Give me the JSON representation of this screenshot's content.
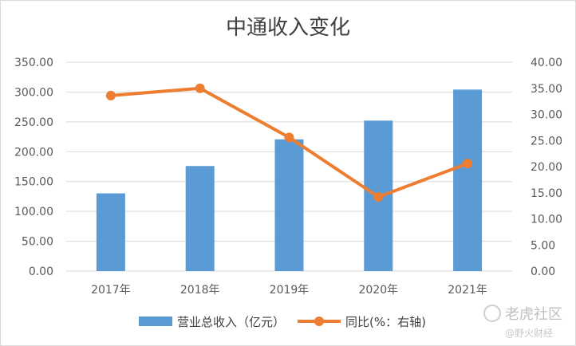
{
  "chart_data": {
    "type": "bar",
    "title": "中通收入变化",
    "categories": [
      "2017年",
      "2018年",
      "2019年",
      "2020年",
      "2021年"
    ],
    "series": [
      {
        "name": "营业总收入（亿元）",
        "type": "bar",
        "axis": "left",
        "color": "#5b9bd5",
        "values": [
          130.2,
          176.0,
          220.7,
          252.1,
          304.1
        ]
      },
      {
        "name": "同比(%：右轴)",
        "type": "line",
        "axis": "right",
        "color": "#ed7d31",
        "values": [
          33.6,
          35.0,
          25.6,
          14.2,
          20.6
        ]
      }
    ],
    "y_left": {
      "min": 0,
      "max": 350,
      "ticks": [
        "0.00",
        "50.00",
        "100.00",
        "150.00",
        "200.00",
        "250.00",
        "300.00",
        "350.00"
      ]
    },
    "y_right": {
      "min": 0,
      "max": 40,
      "ticks": [
        "0.00",
        "5.00",
        "10.00",
        "15.00",
        "20.00",
        "25.00",
        "30.00",
        "35.00",
        "40.00"
      ]
    },
    "grid": true,
    "legend_position": "bottom"
  },
  "watermark": {
    "main": "老虎社区",
    "sub": "@野火财经"
  }
}
